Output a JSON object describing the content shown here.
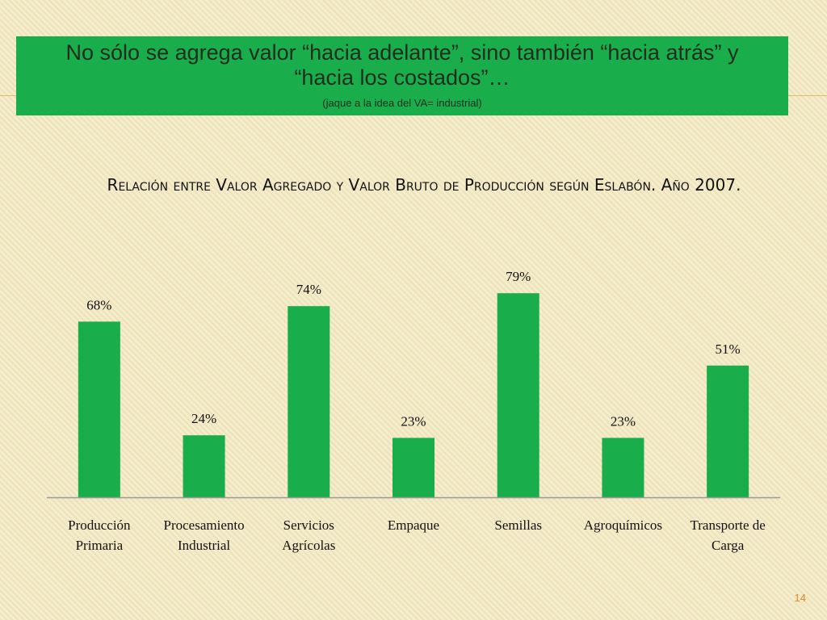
{
  "banner": {
    "title": "No sólo se agrega valor “hacia adelante”, sino también “hacia atrás” y  “hacia los costados”…",
    "subtitle": "(jaque a la idea del VA= industrial)"
  },
  "chart_data": {
    "type": "bar",
    "title": "Relación entre Valor Agregado y Valor Bruto de Producción según Eslabón. Año 2007.",
    "categories": [
      [
        "Producción",
        "Primaria"
      ],
      [
        "Procesamiento",
        "Industrial"
      ],
      [
        "Servicios",
        "Agrícolas"
      ],
      [
        "Empaque"
      ],
      [
        "Semillas"
      ],
      [
        "Agroquímicos"
      ],
      [
        "Transporte de",
        "Carga"
      ]
    ],
    "values": [
      68,
      24,
      74,
      23,
      79,
      23,
      51
    ],
    "data_labels": [
      "68%",
      "24%",
      "74%",
      "23%",
      "79%",
      "23%",
      "51%"
    ],
    "ylim": [
      0,
      100
    ],
    "grid": false,
    "legend": "none",
    "bar_color": "#1aad4b"
  },
  "page_number": "14"
}
